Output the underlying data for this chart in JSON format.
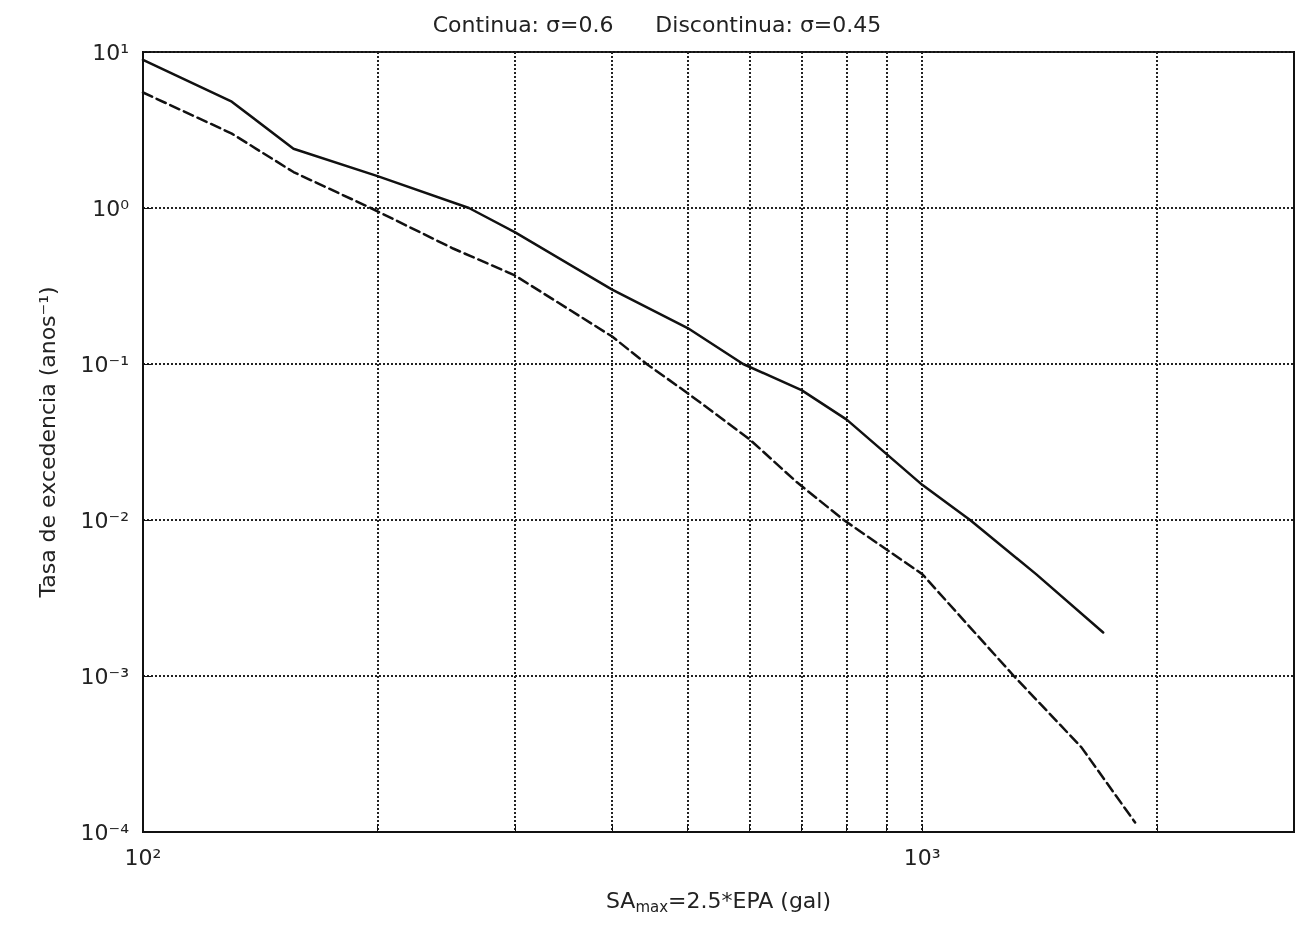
{
  "chart_data": {
    "type": "line",
    "title": "Continua: σ=0.6      Discontinua: σ=0.45",
    "xlabel": "SA$_{max}$=2.5*EPA (gal)",
    "ylabel": "Tasa de excedencia (anos⁻¹)",
    "log": "xy",
    "grid": true,
    "marker": "none",
    "xlim": [
      100,
      3000
    ],
    "ylim": [
      0.0001,
      10
    ],
    "xticks": [
      {
        "value": 100,
        "label": "10²"
      },
      {
        "value": 200,
        "label": null
      },
      {
        "value": 300,
        "label": null
      },
      {
        "value": 400,
        "label": null
      },
      {
        "value": 500,
        "label": null
      },
      {
        "value": 600,
        "label": null
      },
      {
        "value": 700,
        "label": null
      },
      {
        "value": 800,
        "label": null
      },
      {
        "value": 900,
        "label": null
      },
      {
        "value": 1000,
        "label": "10³"
      },
      {
        "value": 2000,
        "label": null
      }
    ],
    "yticks": [
      {
        "value": 0.0001,
        "label": "10⁻⁴"
      },
      {
        "value": 0.001,
        "label": "10⁻³"
      },
      {
        "value": 0.01,
        "label": "10⁻²"
      },
      {
        "value": 0.1,
        "label": "10⁻¹"
      },
      {
        "value": 1,
        "label": "10⁰"
      },
      {
        "value": 10,
        "label": "10¹"
      }
    ],
    "series": [
      {
        "color": "#111111",
        "line_style": "solid",
        "x": [
          100,
          130,
          156,
          200,
          262,
          300,
          400,
          500,
          589,
          700,
          800,
          1000,
          1152,
          1400,
          1707
        ],
        "values": [
          8.9,
          4.8,
          2.4,
          1.6,
          1.0,
          0.7,
          0.3,
          0.17,
          0.1,
          0.068,
          0.044,
          0.0168,
          0.01,
          0.0045,
          0.0019
        ]
      },
      {
        "color": "#111111",
        "line_style": "dashed",
        "x": [
          100,
          130,
          156,
          196,
          250,
          300,
          400,
          443,
          500,
          600,
          690,
          793,
          1000,
          1311,
          1600,
          1876
        ],
        "values": [
          5.5,
          3.0,
          1.7,
          1.0,
          0.55,
          0.37,
          0.15,
          0.1,
          0.065,
          0.033,
          0.0175,
          0.01,
          0.0045,
          0.001,
          0.00035,
          0.000115
        ]
      }
    ]
  }
}
